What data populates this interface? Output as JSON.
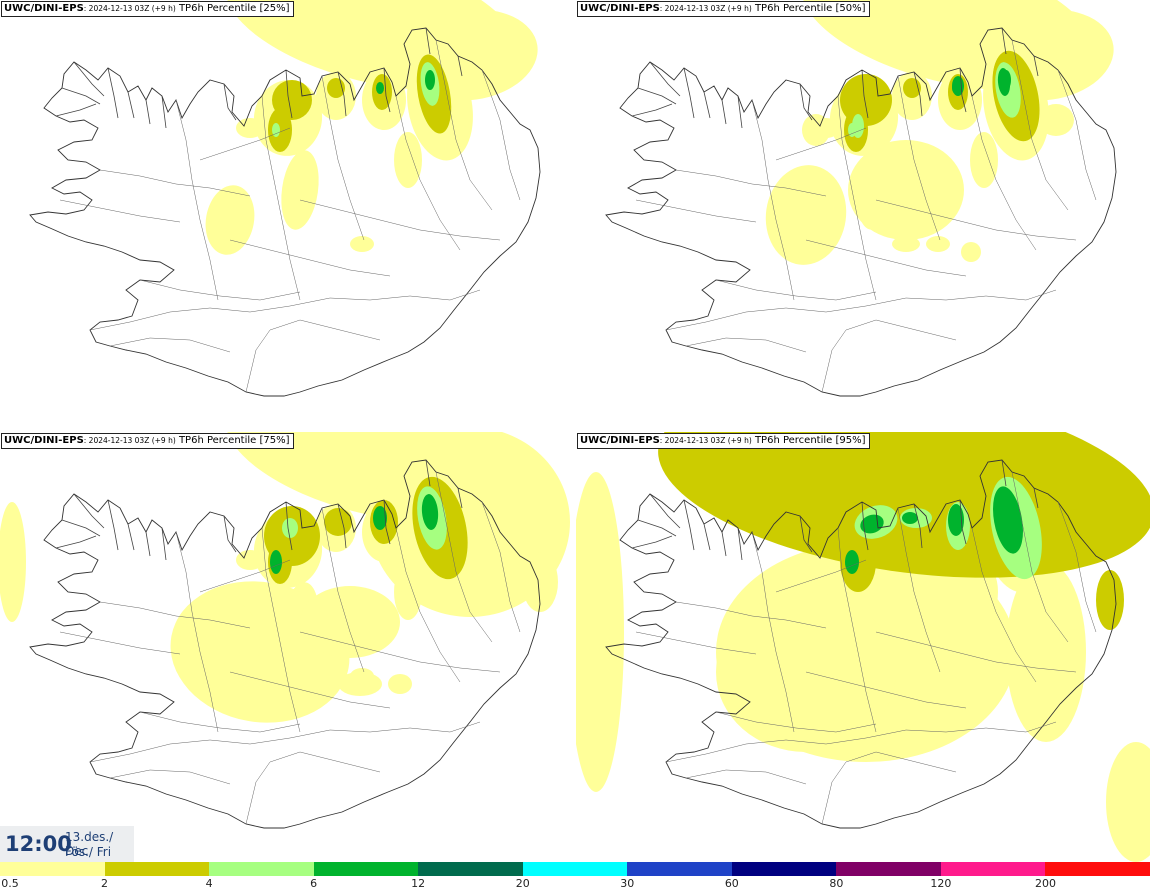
{
  "panels": [
    {
      "model": "UWC/DINI-EPS",
      "run": ": 2024-12-13 03Z (+9 h)",
      "field": " TP6h Percentile [25%]",
      "level": 0
    },
    {
      "model": "UWC/DINI-EPS",
      "run": ": 2024-12-13 03Z (+9 h)",
      "field": " TP6h Percentile [50%]",
      "level": 1
    },
    {
      "model": "UWC/DINI-EPS",
      "run": ": 2024-12-13 03Z (+9 h)",
      "field": " TP6h Percentile [75%]",
      "level": 2
    },
    {
      "model": "UWC/DINI-EPS",
      "run": ": 2024-12-13 03Z (+9 h)",
      "field": " TP6h Percentile [95%]",
      "level": 3
    }
  ],
  "valid_time": {
    "hour": "12:00",
    "date_line1": "13.des./ Dec",
    "date_line2": "Fös./ Fri"
  },
  "legend": {
    "labels": [
      "0.5",
      "2",
      "4",
      "6",
      "12",
      "20",
      "30",
      "60",
      "80",
      "120",
      "200"
    ],
    "colors": [
      "#ffff99",
      "#cccc00",
      "#a6ff80",
      "#00b32d",
      "#006b4d",
      "#00ffff",
      "#1f43c7",
      "#000080",
      "#800066",
      "#ff1a8c",
      "#ff0d0d"
    ]
  }
}
